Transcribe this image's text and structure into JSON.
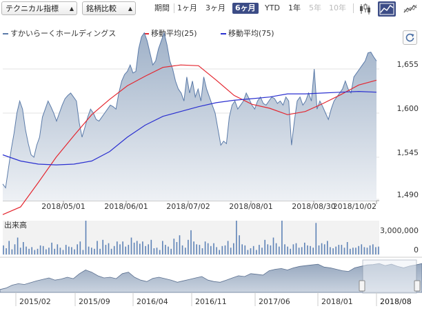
{
  "toolbar": {
    "indicator_select": "テクニカル指標",
    "compare_select": "銘柄比較",
    "period_label": "期間",
    "ranges": [
      {
        "label": "1ヶ月",
        "state": "normal"
      },
      {
        "label": "3ヶ月",
        "state": "normal"
      },
      {
        "label": "6ヶ月",
        "state": "active"
      },
      {
        "label": "YTD",
        "state": "normal"
      },
      {
        "label": "1年",
        "state": "normal"
      },
      {
        "label": "5年",
        "state": "disabled"
      },
      {
        "label": "10年",
        "state": "disabled"
      }
    ],
    "icons": [
      "candlestick-icon",
      "area-chart-icon",
      "compare-chart-icon"
    ]
  },
  "colors": {
    "price": "#5a7aa8",
    "ma25": "#e4262f",
    "ma75": "#2a2fd0",
    "volume": "#5d82b6",
    "navigator": "#8fa0b8"
  },
  "chart_data": [
    {
      "type": "line",
      "title": "",
      "series": [
        {
          "name": "すかいらーくホールディングス",
          "style": "area",
          "values": [
            1510,
            1505,
            1530,
            1555,
            1575,
            1600,
            1615,
            1605,
            1580,
            1562,
            1548,
            1545,
            1560,
            1570,
            1595,
            1605,
            1615,
            1608,
            1600,
            1590,
            1600,
            1610,
            1618,
            1622,
            1625,
            1620,
            1615,
            1588,
            1570,
            1582,
            1595,
            1605,
            1600,
            1592,
            1590,
            1595,
            1600,
            1605,
            1610,
            1608,
            1605,
            1625,
            1640,
            1648,
            1652,
            1660,
            1650,
            1652,
            1680,
            1695,
            1700,
            1690,
            1675,
            1660,
            1665,
            1680,
            1690,
            1700,
            1685,
            1665,
            1655,
            1640,
            1630,
            1625,
            1615,
            1645,
            1625,
            1640,
            1620,
            1630,
            1615,
            1645,
            1630,
            1620,
            1610,
            1600,
            1580,
            1560,
            1565,
            1562,
            1595,
            1610,
            1615,
            1605,
            1610,
            1615,
            1625,
            1618,
            1610,
            1605,
            1615,
            1620,
            1612,
            1610,
            1615,
            1620,
            1618,
            1612,
            1615,
            1610,
            1620,
            1615,
            1560,
            1590,
            1615,
            1620,
            1610,
            1615,
            1625,
            1615,
            1655,
            1605,
            1615,
            1608,
            1600,
            1592,
            1605,
            1615,
            1620,
            1625,
            1630,
            1640,
            1630,
            1625,
            1645,
            1650,
            1655,
            1660,
            1665,
            1675,
            1676,
            1670,
            1665
          ]
        },
        {
          "name": "移動平均(25)",
          "values": [
            1470,
            1480,
            1512,
            1545,
            1572,
            1598,
            1617,
            1634,
            1646,
            1657,
            1660,
            1659,
            1641,
            1622,
            1611,
            1606,
            1598,
            1602,
            1612,
            1623,
            1635,
            1641
          ]
        },
        {
          "name": "移動平均(75)",
          "values": [
            1548,
            1540,
            1536,
            1535,
            1536,
            1540,
            1552,
            1570,
            1585,
            1596,
            1602,
            1608,
            1613,
            1616,
            1618,
            1620,
            1624,
            1624,
            1625,
            1626,
            1627,
            1626
          ]
        }
      ],
      "ylim": [
        1490,
        1700
      ],
      "y_ticks": [
        "1,490",
        "1,545",
        "1,600",
        "1,655"
      ],
      "x_ticks": [
        "2018/05/01",
        "2018/06/01",
        "2018/07/02",
        "2018/08/01",
        "2018/08/30",
        "2018/10/02"
      ],
      "grid": true,
      "legend_position": "top-left"
    },
    {
      "type": "bar",
      "title": "出来高",
      "series": [
        {
          "name": "出来高",
          "values": [
            800000,
            550000,
            1200000,
            450000,
            900000,
            1500000,
            600000,
            1100000,
            700000,
            500000,
            650000,
            400000,
            500000,
            800000,
            750000,
            450000,
            600000,
            1050000,
            500000,
            900000,
            600000,
            400000,
            850000,
            700000,
            650000,
            450000,
            900000,
            1150000,
            400000,
            3000000,
            700000,
            600000,
            500000,
            1200000,
            500000,
            1300000,
            850000,
            1000000,
            500000,
            750000,
            1150000,
            900000,
            1150000,
            700000,
            850000,
            1500000,
            1050000,
            1200000,
            950000,
            1150000,
            750000,
            900000,
            1300000,
            550000,
            600000,
            400000,
            1200000,
            850000,
            700000,
            500000,
            1400000,
            1100000,
            1700000,
            800000,
            600000,
            1300000,
            2150000,
            1150000,
            900000,
            850000,
            550000,
            1150000,
            1000000,
            750000,
            1000000,
            650000,
            400000,
            750000,
            800000,
            1200000,
            600000,
            1000000,
            3000000,
            1700000,
            900000,
            800000,
            400000,
            550000,
            750000,
            400000,
            850000,
            600000,
            1300000,
            900000,
            800000,
            1500000,
            1000000,
            700000,
            3000000,
            900000,
            700000,
            500000,
            900000,
            1000000,
            600000,
            650000,
            1050000,
            800000,
            750000,
            600000,
            2800000,
            800000,
            1000000,
            900000,
            1200000,
            650000,
            550000,
            700000,
            850000,
            850000,
            600000,
            1100000,
            500000,
            600000,
            600000,
            750000,
            900000,
            650000,
            600000,
            800000,
            900000,
            650000,
            700000
          ]
        }
      ],
      "ylim": [
        0,
        3000000
      ],
      "y_ticks": [
        "3,000,000",
        "0"
      ],
      "grid": false
    },
    {
      "type": "area",
      "title": "",
      "x_ticks": [
        "2015/02",
        "2015/09",
        "2016/04",
        "2016/11",
        "2017/06",
        "2018/01",
        "2018/08"
      ],
      "series": [
        {
          "name": "",
          "values": [
            1300,
            1320,
            1360,
            1380,
            1370,
            1395,
            1420,
            1440,
            1460,
            1430,
            1445,
            1470,
            1450,
            1520,
            1570,
            1540,
            1490,
            1460,
            1470,
            1450,
            1520,
            1540,
            1470,
            1430,
            1410,
            1455,
            1470,
            1450,
            1430,
            1400,
            1420,
            1440,
            1460,
            1480,
            1430,
            1410,
            1400,
            1430,
            1460,
            1490,
            1480,
            1520,
            1510,
            1500,
            1560,
            1580,
            1590,
            1570,
            1600,
            1620,
            1630,
            1640,
            1650,
            1610,
            1600,
            1580,
            1560,
            1550,
            1600,
            1620,
            1640,
            1645,
            1660,
            1630,
            1650,
            1620,
            1600,
            1625,
            1640,
            1660
          ]
        }
      ],
      "selected_range": "2018/04 - 2018/10"
    }
  ]
}
